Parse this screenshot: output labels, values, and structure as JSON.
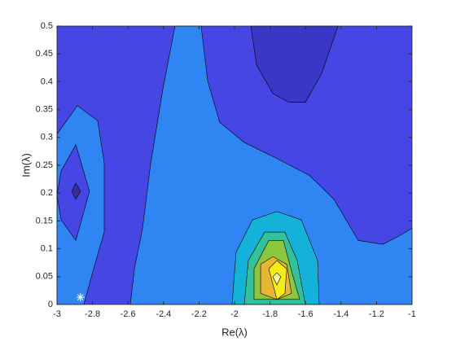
{
  "chart_data": {
    "type": "contourf",
    "xlabel": "Re(λ)",
    "ylabel": "Im(λ)",
    "xlim": [
      -3,
      -1
    ],
    "ylim": [
      0,
      0.5
    ],
    "xticks": [
      -3,
      -2.8,
      -2.6,
      -2.4,
      -2.2,
      -2,
      -1.8,
      -1.6,
      -1.4,
      -1.2,
      -1
    ],
    "yticks": [
      0,
      0.05,
      0.1,
      0.15,
      0.2,
      0.25,
      0.3,
      0.35,
      0.4,
      0.45,
      0.5
    ],
    "background": "#4646e4",
    "regions": [
      {
        "color": "#2f86f2",
        "points": [
          [
            -3,
            0.306
          ],
          [
            -2.885,
            0.357
          ],
          [
            -2.771,
            0.33
          ],
          [
            -2.734,
            0.254
          ],
          [
            -2.734,
            0.13
          ],
          [
            -2.794,
            0.064
          ],
          [
            -2.849,
            0
          ],
          [
            -3,
            0
          ]
        ]
      },
      {
        "color": "#2f86f2",
        "points": [
          [
            -2.587,
            0
          ],
          [
            -2.564,
            0.064
          ],
          [
            -2.518,
            0.137
          ],
          [
            -2.472,
            0.254
          ],
          [
            -2.404,
            0.386
          ],
          [
            -2.335,
            0.5
          ],
          [
            -2.188,
            0.5
          ],
          [
            -2.151,
            0.401
          ],
          [
            -2.083,
            0.327
          ],
          [
            -1.945,
            0.291
          ],
          [
            -1.761,
            0.262
          ],
          [
            -1.578,
            0.232
          ],
          [
            -1.44,
            0.189
          ],
          [
            -1.303,
            0.115
          ],
          [
            -1.165,
            0.108
          ],
          [
            -1.073,
            0.123
          ],
          [
            -1,
            0.137
          ],
          [
            -1,
            0
          ]
        ]
      },
      {
        "color": "#3a37c6",
        "points": [
          [
            -1.908,
            0.5
          ],
          [
            -1.876,
            0.43
          ],
          [
            -1.784,
            0.379
          ],
          [
            -1.693,
            0.363
          ],
          [
            -1.601,
            0.363
          ],
          [
            -1.509,
            0.415
          ],
          [
            -1.417,
            0.5
          ]
        ]
      },
      {
        "color": "#4646e4",
        "points": [
          [
            -2.977,
            0.24
          ],
          [
            -2.894,
            0.287
          ],
          [
            -2.817,
            0.203
          ],
          [
            -2.894,
            0.115
          ],
          [
            -2.977,
            0.152
          ],
          [
            -3,
            0.196
          ]
        ]
      },
      {
        "color": "#3a2c9a",
        "points": [
          [
            -2.917,
            0.203
          ],
          [
            -2.894,
            0.218
          ],
          [
            -2.867,
            0.203
          ],
          [
            -2.894,
            0.189
          ]
        ]
      },
      {
        "color": "#14b2d8",
        "points": [
          [
            -2.014,
            0
          ],
          [
            -1.991,
            0.094
          ],
          [
            -1.899,
            0.152
          ],
          [
            -1.761,
            0.167
          ],
          [
            -1.624,
            0.152
          ],
          [
            -1.532,
            0.079
          ],
          [
            -1.523,
            0
          ]
        ]
      },
      {
        "color": "#33c19c",
        "points": [
          [
            -1.945,
            0
          ],
          [
            -1.922,
            0.079
          ],
          [
            -1.83,
            0.13
          ],
          [
            -1.716,
            0.13
          ],
          [
            -1.647,
            0.079
          ],
          [
            -1.601,
            0
          ]
        ]
      },
      {
        "color": "#8cc63e",
        "points": [
          [
            -1.89,
            0.009
          ],
          [
            -1.89,
            0.064
          ],
          [
            -1.807,
            0.115
          ],
          [
            -1.725,
            0.115
          ],
          [
            -1.67,
            0.05
          ],
          [
            -1.633,
            0.009
          ]
        ]
      },
      {
        "color": "#e9b634",
        "points": [
          [
            -1.853,
            0.02
          ],
          [
            -1.853,
            0.072
          ],
          [
            -1.784,
            0.086
          ],
          [
            -1.706,
            0.072
          ],
          [
            -1.679,
            0.02
          ],
          [
            -1.761,
            0.009
          ]
        ]
      },
      {
        "color": "#f5ea1c",
        "points": [
          [
            -1.807,
            0.064
          ],
          [
            -1.761,
            0.079
          ],
          [
            -1.706,
            0.064
          ],
          [
            -1.716,
            0.02
          ],
          [
            -1.761,
            0.009
          ]
        ]
      },
      {
        "color": "#fbfba0",
        "points": [
          [
            -1.784,
            0.05
          ],
          [
            -1.761,
            0.057
          ],
          [
            -1.739,
            0.05
          ],
          [
            -1.761,
            0.035
          ]
        ]
      }
    ],
    "markers": {
      "x": [
        -2.868
      ],
      "y": [
        0.013
      ],
      "color": "#ffffff"
    }
  }
}
